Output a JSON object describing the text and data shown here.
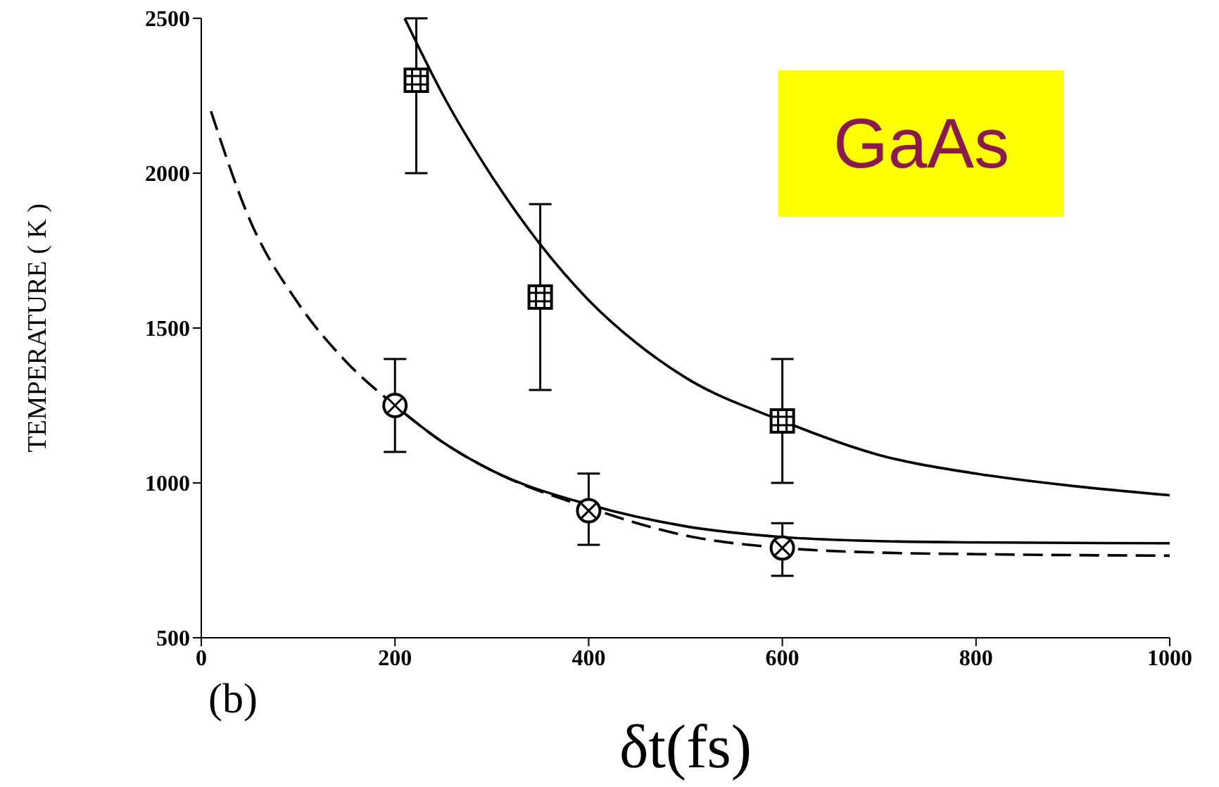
{
  "chart_data": {
    "type": "scatter",
    "xlabel": "δt(fs)",
    "ylabel": "TEMPERATURE ( K )",
    "xlim": [
      0,
      1000
    ],
    "ylim": [
      500,
      2500
    ],
    "xticks": [
      0,
      200,
      400,
      600,
      800,
      1000
    ],
    "yticks": [
      500,
      1000,
      1500,
      2000,
      2500
    ],
    "grid": false,
    "legend": false,
    "annotations": [
      "GaAs",
      "(b)"
    ],
    "series": [
      {
        "type": "scatter",
        "color": "#000000",
        "marker": "square",
        "x": [
          222,
          350,
          600
        ],
        "values": [
          2300,
          1600,
          1200
        ],
        "errors": [
          [
            2000,
            2500
          ],
          300,
          200
        ]
      },
      {
        "type": "scatter",
        "color": "#000000",
        "marker": "circle",
        "x": [
          200,
          400,
          600
        ],
        "values": [
          1250,
          910,
          790
        ],
        "errors": [
          150,
          [
            800,
            1030
          ],
          [
            700,
            870
          ]
        ]
      },
      {
        "type": "line",
        "color": "#000000",
        "marker": "none",
        "line_style": "solid",
        "x": [
          210,
          250,
          300,
          350,
          400,
          450,
          500,
          600,
          700,
          800,
          900,
          1000
        ],
        "values": [
          2500,
          2250,
          1990,
          1770,
          1590,
          1450,
          1340,
          1200,
          1090,
          1030,
          990,
          960
        ]
      },
      {
        "type": "line",
        "color": "#000000",
        "marker": "none",
        "line_style": "solid",
        "x": [
          200,
          250,
          300,
          400,
          500,
          600,
          700,
          800,
          1000
        ],
        "values": [
          1250,
          1130,
          1040,
          930,
          860,
          825,
          812,
          808,
          805
        ]
      },
      {
        "type": "line",
        "color": "#000000",
        "marker": "none",
        "line_style": "dashed",
        "x": [
          10,
          50,
          100,
          150,
          200,
          250,
          300,
          400,
          500,
          600,
          700,
          800,
          1000
        ],
        "values": [
          2200,
          1850,
          1580,
          1390,
          1250,
          1130,
          1040,
          920,
          830,
          790,
          775,
          770,
          765
        ]
      }
    ]
  }
}
